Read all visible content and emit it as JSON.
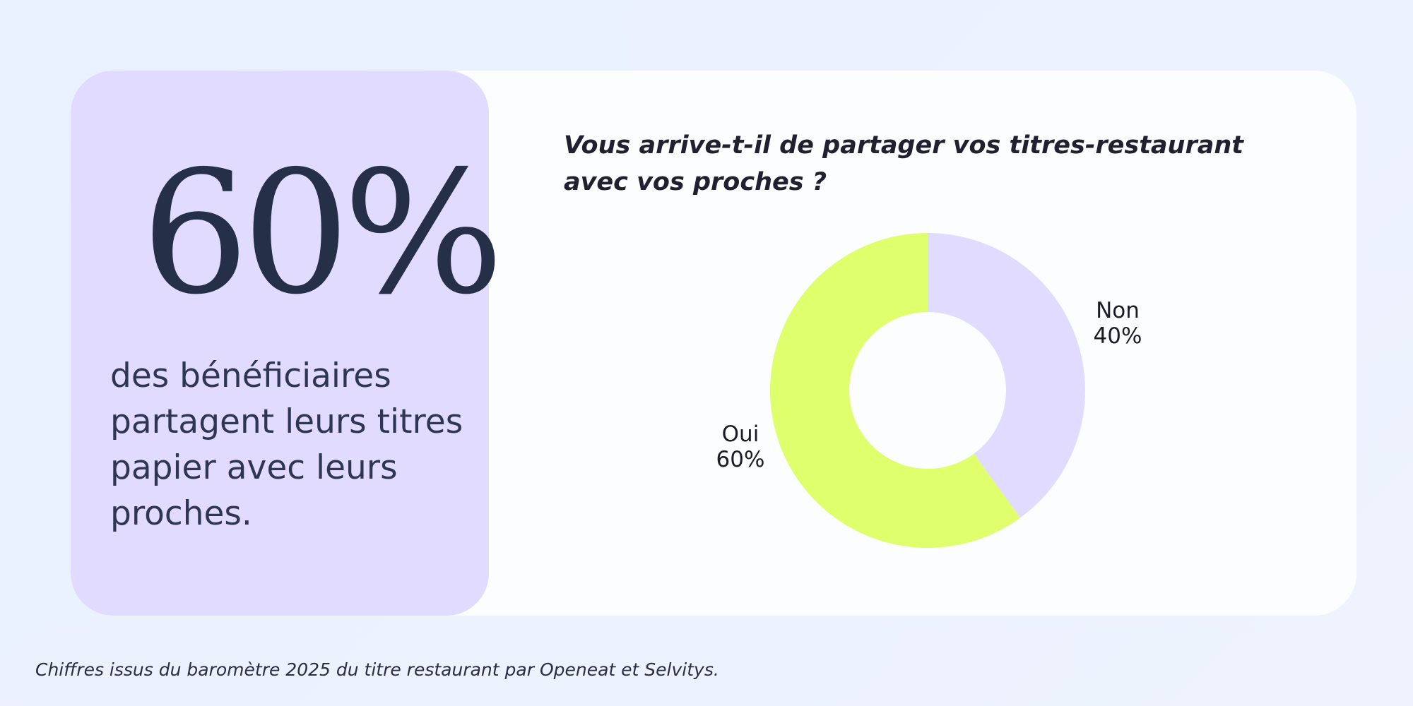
{
  "stat": {
    "value": "60%",
    "caption": "des bénéficiaires partagent leurs titres papier avec leurs proches."
  },
  "footnote": "Chiffres issus du baromètre 2025 du titre restaurant par Openeat et Selvitys.",
  "chart_data": {
    "type": "pie",
    "title": "Vous arrive-t-il de partager vos titres-restaurant avec vos proches ?",
    "donut": true,
    "slices": [
      {
        "label": "Non",
        "value": 40,
        "value_label": "40%",
        "color": "#e1dcff"
      },
      {
        "label": "Oui",
        "value": 60,
        "value_label": "60%",
        "color": "#dfff6c"
      }
    ],
    "start": "top",
    "direction": "clockwise"
  },
  "colors": {
    "panel": "#e1dcff",
    "accent": "#dfff6c",
    "text_dark": "#252f48"
  }
}
